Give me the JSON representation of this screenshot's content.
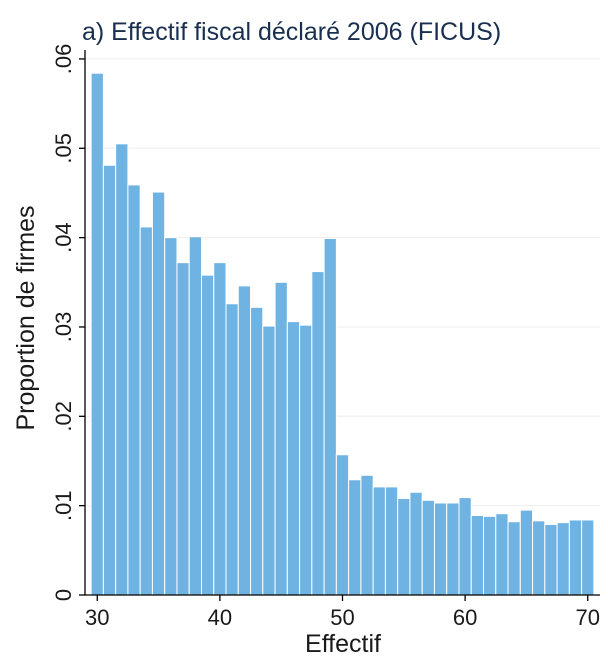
{
  "chart_data": {
    "type": "bar",
    "title": "a) Effectif fiscal déclaré 2006 (FICUS)",
    "xlabel": "Effectif",
    "ylabel": "Proportion de firmes",
    "x": [
      30,
      31,
      32,
      33,
      34,
      35,
      36,
      37,
      38,
      39,
      40,
      41,
      42,
      43,
      44,
      45,
      46,
      47,
      48,
      49,
      50,
      51,
      52,
      53,
      54,
      55,
      56,
      57,
      58,
      59,
      60,
      61,
      62,
      63,
      64,
      65,
      66,
      67,
      68,
      69,
      70
    ],
    "values": [
      0.0584,
      0.0481,
      0.0505,
      0.0459,
      0.0412,
      0.0451,
      0.04,
      0.0372,
      0.0401,
      0.0358,
      0.0372,
      0.0326,
      0.0346,
      0.0322,
      0.0301,
      0.035,
      0.0306,
      0.0302,
      0.0362,
      0.0399,
      0.0157,
      0.0129,
      0.0134,
      0.0121,
      0.0121,
      0.0108,
      0.0115,
      0.0106,
      0.0103,
      0.0103,
      0.0109,
      0.0089,
      0.0088,
      0.0091,
      0.0082,
      0.0095,
      0.0083,
      0.0079,
      0.0081,
      0.0084,
      0.0084
    ],
    "xlim": [
      29,
      71
    ],
    "ylim": [
      0,
      0.061
    ],
    "xticks": [
      30,
      40,
      50,
      60,
      70
    ],
    "xtick_labels": [
      "30",
      "40",
      "50",
      "60",
      "70"
    ],
    "yticks": [
      0,
      0.01,
      0.02,
      0.03,
      0.04,
      0.05,
      0.06
    ],
    "ytick_labels": [
      "0",
      ".01",
      ".02",
      ".03",
      ".04",
      ".05",
      ".06"
    ],
    "grid": true,
    "bar_color": "#6fb3e3"
  }
}
